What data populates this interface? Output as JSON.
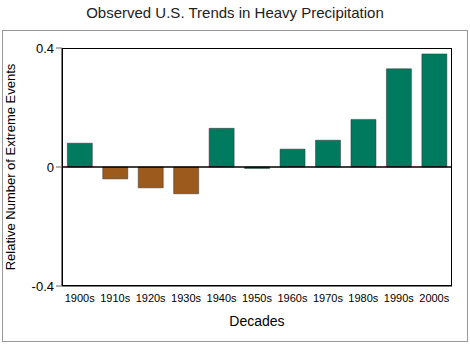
{
  "chart_data": {
    "type": "bar",
    "title": "Observed U.S. Trends in Heavy Precipitation",
    "x_label": "Decades",
    "y_label": "Relative Number of Extreme Events",
    "categories": [
      "1900s",
      "1910s",
      "1920s",
      "1930s",
      "1940s",
      "1950s",
      "1960s",
      "1970s",
      "1980s",
      "1990s",
      "2000s"
    ],
    "values": [
      0.08,
      -0.04,
      -0.07,
      -0.09,
      0.13,
      -0.005,
      0.06,
      0.09,
      0.16,
      0.33,
      0.38
    ],
    "colors": [
      "#007a5e",
      "#9c5a1c",
      "#9c5a1c",
      "#9c5a1c",
      "#007a5e",
      "#007a5e",
      "#007a5e",
      "#007a5e",
      "#007a5e",
      "#007a5e",
      "#007a5e"
    ],
    "ylim": [
      -0.4,
      0.4
    ],
    "yticks": [
      -0.4,
      0,
      0.4
    ],
    "grid": false
  }
}
